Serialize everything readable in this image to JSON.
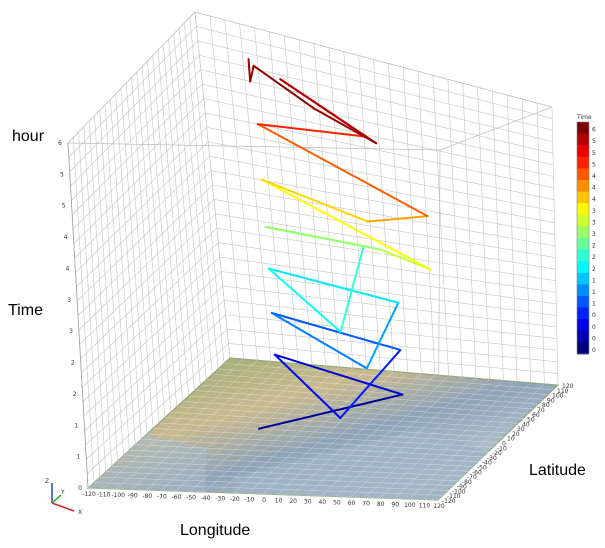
{
  "chart_data": {
    "type": "line",
    "title": "",
    "xlabel": "Longitude",
    "ylabel": "Latitude",
    "zlabel": "Time",
    "zunit_label": "hour",
    "x_ticks": [
      "-120",
      "-110",
      "-100",
      "-90",
      "-80",
      "-70",
      "-60",
      "-50",
      "-40",
      "-30",
      "-20",
      "-10",
      "0",
      "10",
      "20",
      "30",
      "40",
      "50",
      "60",
      "70",
      "80",
      "90",
      "100",
      "110",
      "120"
    ],
    "y_ticks": [
      "-120",
      "-110",
      "-100",
      "-90",
      "-80",
      "-70",
      "-60",
      "-50",
      "-40",
      "-30",
      "-20",
      "-10",
      "0",
      "10",
      "20",
      "30",
      "40",
      "50",
      "60",
      "70",
      "80",
      "90",
      "100",
      "110",
      "120"
    ],
    "z_ticks": [
      "0",
      "1",
      "1",
      "2",
      "2",
      "3",
      "3",
      "4",
      "4",
      "5",
      "5",
      "6"
    ],
    "zlim": [
      0,
      6
    ],
    "grid": true,
    "base": "map",
    "colormap": "jet",
    "legend": {
      "title": "Time",
      "position": "right",
      "labels": [
        "6",
        "5",
        "5",
        "5",
        "4",
        "4",
        "4",
        "3",
        "3",
        "3",
        "2",
        "2",
        "2",
        "1",
        "1",
        "1",
        "0",
        "0",
        "0",
        "0"
      ]
    },
    "series": [
      {
        "points": [
          {
            "x": -45,
            "y": -10,
            "z": 0.1
          },
          {
            "x": 30,
            "y": 60,
            "z": 0.2
          },
          {
            "x": -60,
            "y": 60,
            "z": 0.75
          },
          {
            "x": 30,
            "y": -55,
            "z": 0.8
          },
          {
            "x": 30,
            "y": 60,
            "z": 1.05
          },
          {
            "x": -60,
            "y": 60,
            "z": 1.5
          },
          {
            "x": 40,
            "y": -30,
            "z": 1.5
          },
          {
            "x": 30,
            "y": 60,
            "z": 1.95
          },
          {
            "x": -60,
            "y": 60,
            "z": 2.3
          },
          {
            "x": 30,
            "y": -50,
            "z": 2.3
          },
          {
            "x": 0,
            "y": 80,
            "z": 2.75
          },
          {
            "x": -60,
            "y": 60,
            "z": 3.05
          },
          {
            "x": 30,
            "y": 30,
            "z": 3.2
          },
          {
            "x": 95,
            "y": -60,
            "z": 3.6
          },
          {
            "x": -60,
            "y": 60,
            "z": 3.9
          },
          {
            "x": 40,
            "y": -20,
            "z": 4.1
          },
          {
            "x": 90,
            "y": -50,
            "z": 4.5
          },
          {
            "x": -60,
            "y": 60,
            "z": 4.9
          },
          {
            "x": 20,
            "y": 40,
            "z": 5.2
          },
          {
            "x": -50,
            "y": 80,
            "z": 5.6
          },
          {
            "x": 60,
            "y": -60,
            "z": 5.8
          },
          {
            "x": 0,
            "y": 0,
            "z": 5.9
          },
          {
            "x": -60,
            "y": 60,
            "z": 5.95
          },
          {
            "x": -65,
            "y": 65,
            "z": 5.6
          },
          {
            "x": -65,
            "y": 65,
            "z": 6.0
          }
        ]
      }
    ],
    "axis_triad": [
      "Z",
      "Y",
      "X"
    ]
  }
}
